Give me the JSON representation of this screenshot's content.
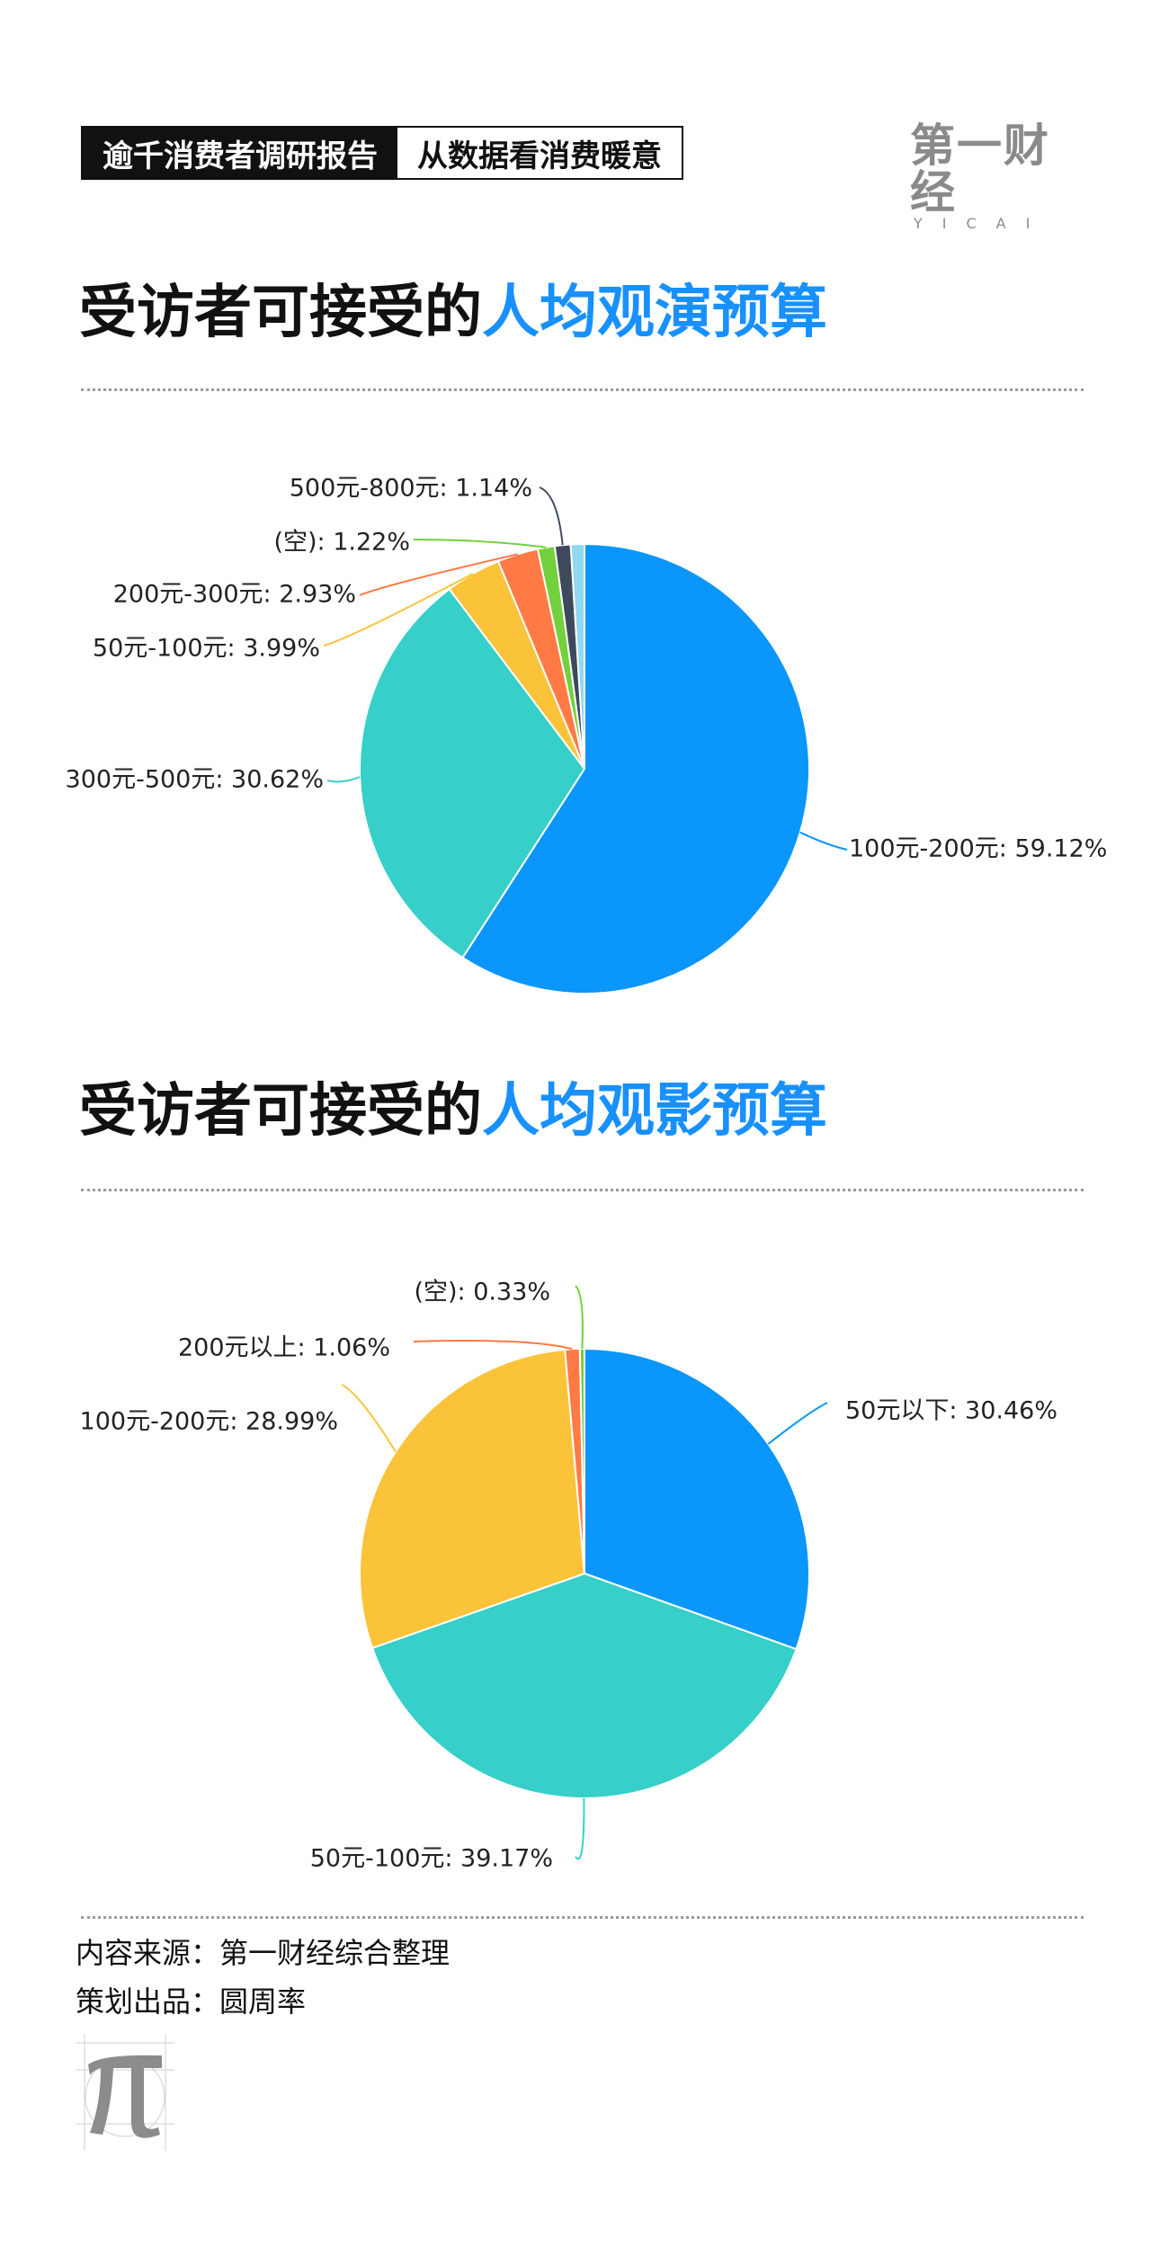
{
  "header": {
    "tag_left": "逾千消费者调研报告",
    "tag_right": "从数据看消费暖意",
    "logo": "第一财经",
    "logo_sub": "YICAI"
  },
  "charts": [
    {
      "title_prefix": "受访者可接受的",
      "title_highlight": "人均观演预算"
    },
    {
      "title_prefix": "受访者可接受的",
      "title_highlight": "人均观影预算"
    }
  ],
  "chart_data": [
    {
      "type": "pie",
      "slices": [
        {
          "label": "100元-200元",
          "value": 59.12,
          "display": "100元-200元: 59.12%",
          "color": "#0a96fb"
        },
        {
          "label": "300元-500元",
          "value": 30.62,
          "display": "300元-500元: 30.62%",
          "color": "#36cfc9"
        },
        {
          "label": "50元-100元",
          "value": 3.99,
          "display": "50元-100元: 3.99%",
          "color": "#fbc33a"
        },
        {
          "label": "200元-300元",
          "value": 2.93,
          "display": "200元-300元: 2.93%",
          "color": "#ff7a45"
        },
        {
          "label": "(空)",
          "value": 1.22,
          "display": "(空): 1.22%",
          "color": "#73d13d"
        },
        {
          "label": "500元-800元",
          "value": 1.14,
          "display": "500元-800元: 1.14%",
          "color": "#3d4a5c"
        },
        {
          "label": "",
          "value": 0.98,
          "display": "",
          "color": "#8fd9f2"
        }
      ]
    },
    {
      "type": "pie",
      "slices": [
        {
          "label": "50元以下",
          "value": 30.46,
          "display": "50元以下: 30.46%",
          "color": "#0a96fb"
        },
        {
          "label": "50元-100元",
          "value": 39.17,
          "display": "50元-100元: 39.17%",
          "color": "#36cfc9"
        },
        {
          "label": "100元-200元",
          "value": 28.99,
          "display": "100元-200元: 28.99%",
          "color": "#fbc33a"
        },
        {
          "label": "200元以上",
          "value": 1.06,
          "display": "200元以上: 1.06%",
          "color": "#ff7a45"
        },
        {
          "label": "(空)",
          "value": 0.33,
          "display": "(空): 0.33%",
          "color": "#73d13d"
        }
      ]
    }
  ],
  "footer": {
    "source": "内容来源：第一财经综合整理",
    "produced_by": "策划出品：圆周率"
  }
}
